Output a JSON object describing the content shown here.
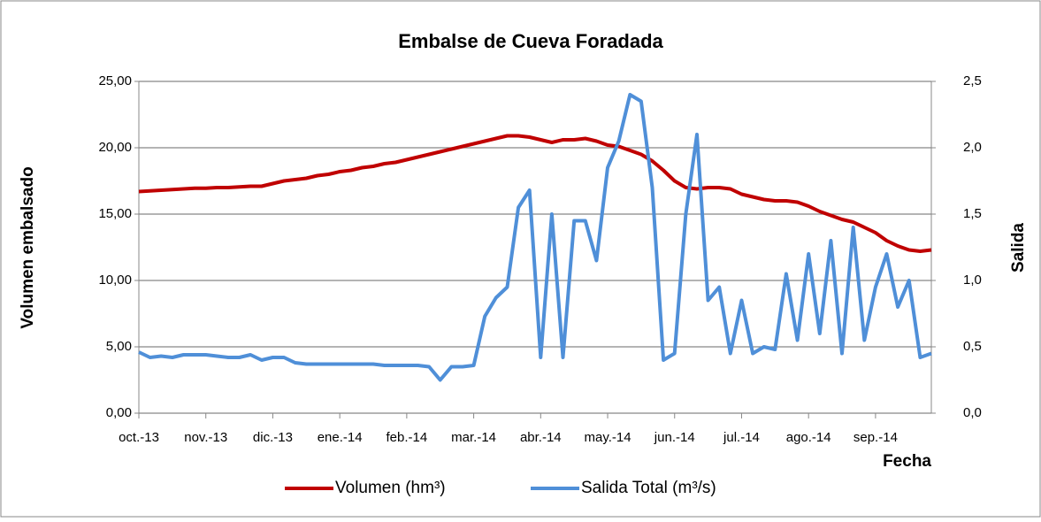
{
  "chart_data": {
    "type": "line",
    "title": "Embalse de Cueva Foradada",
    "x_label": "Fecha",
    "y_label": "Volumen embalsado",
    "y2_label": "Salida",
    "categories": [
      "oct.-13",
      null,
      null,
      null,
      null,
      null,
      "nov.-13",
      null,
      null,
      null,
      null,
      null,
      "dic.-13",
      null,
      null,
      null,
      null,
      null,
      "ene.-14",
      null,
      null,
      null,
      null,
      null,
      "feb.-14",
      null,
      null,
      null,
      null,
      null,
      "mar.-14",
      null,
      null,
      null,
      null,
      null,
      "abr.-14",
      null,
      null,
      null,
      null,
      null,
      "may.-14",
      null,
      null,
      null,
      null,
      null,
      "jun.-14",
      null,
      null,
      null,
      null,
      null,
      "jul.-14",
      null,
      null,
      null,
      null,
      null,
      "ago.-14",
      null,
      null,
      null,
      null,
      null,
      "sep.-14",
      null,
      null,
      null,
      null,
      null
    ],
    "series": [
      {
        "name": "Volumen (hm³)",
        "color": "#c00000",
        "axis": "y",
        "values": [
          16.7,
          16.75,
          16.8,
          16.85,
          16.9,
          16.95,
          16.95,
          17.0,
          17.0,
          17.05,
          17.1,
          17.1,
          17.3,
          17.5,
          17.6,
          17.7,
          17.9,
          18.0,
          18.2,
          18.3,
          18.5,
          18.6,
          18.8,
          18.9,
          19.1,
          19.3,
          19.5,
          19.7,
          19.9,
          20.1,
          20.3,
          20.5,
          20.7,
          20.9,
          20.9,
          20.8,
          20.6,
          20.4,
          20.6,
          20.6,
          20.7,
          20.5,
          20.2,
          20.1,
          19.8,
          19.5,
          19.0,
          18.3,
          17.5,
          17.0,
          16.9,
          17.0,
          17.0,
          16.9,
          16.5,
          16.3,
          16.1,
          16.0,
          16.0,
          15.9,
          15.6,
          15.2,
          14.9,
          14.6,
          14.4,
          14.0,
          13.6,
          13.0,
          12.6,
          12.3,
          12.2,
          12.3
        ]
      },
      {
        "name": "Salida Total (m³/s)",
        "color": "#4f8fd8",
        "axis": "y2",
        "values": [
          0.46,
          0.42,
          0.43,
          0.42,
          0.44,
          0.44,
          0.44,
          0.43,
          0.42,
          0.42,
          0.44,
          0.4,
          0.42,
          0.42,
          0.38,
          0.37,
          0.37,
          0.37,
          0.37,
          0.37,
          0.37,
          0.37,
          0.36,
          0.36,
          0.36,
          0.36,
          0.35,
          0.25,
          0.35,
          0.35,
          0.36,
          0.73,
          0.87,
          0.95,
          1.55,
          1.68,
          0.42,
          1.5,
          0.42,
          1.45,
          1.45,
          1.15,
          1.85,
          2.05,
          2.4,
          2.35,
          1.7,
          0.4,
          0.45,
          1.5,
          2.1,
          0.85,
          0.95,
          0.45,
          0.85,
          0.45,
          0.5,
          0.48,
          1.05,
          0.55,
          1.2,
          0.6,
          1.3,
          0.45,
          1.4,
          0.55,
          0.95,
          1.2,
          0.8,
          1.0,
          0.42,
          0.45
        ]
      }
    ],
    "ylim": [
      0,
      25
    ],
    "yticks": [
      {
        "value": 0,
        "label": "0,00"
      },
      {
        "value": 5,
        "label": "5,00"
      },
      {
        "value": 10,
        "label": "10,00"
      },
      {
        "value": 15,
        "label": "15,00"
      },
      {
        "value": 20,
        "label": "20,00"
      },
      {
        "value": 25,
        "label": "25,00"
      }
    ],
    "y2lim": [
      0,
      2.5
    ],
    "y2ticks": [
      {
        "value": 0,
        "label": "0,0"
      },
      {
        "value": 0.5,
        "label": "0,5"
      },
      {
        "value": 1,
        "label": "1,0"
      },
      {
        "value": 1.5,
        "label": "1,5"
      },
      {
        "value": 2,
        "label": "2,0"
      },
      {
        "value": 2.5,
        "label": "2,5"
      }
    ],
    "grid": true,
    "legend": "bottom"
  }
}
